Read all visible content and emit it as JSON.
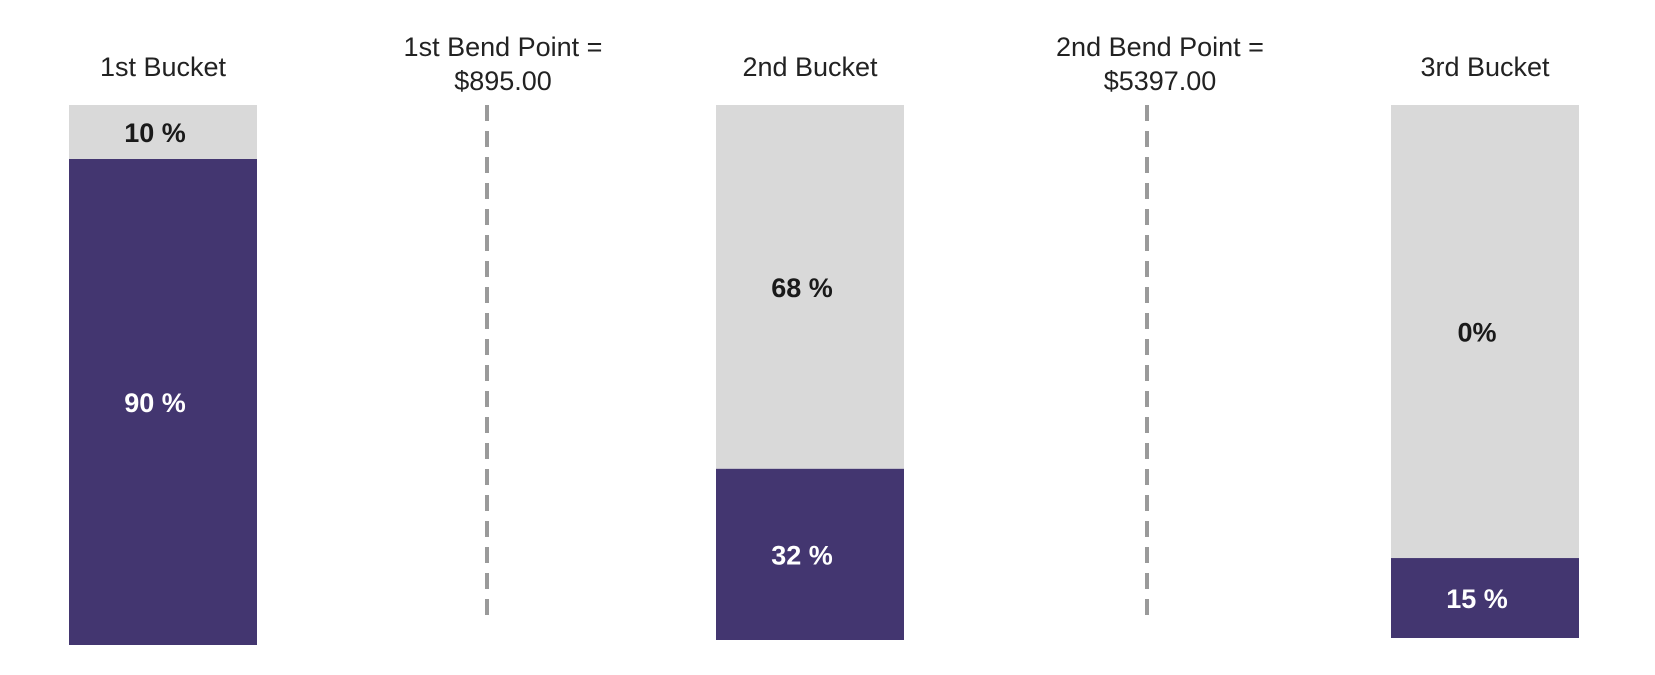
{
  "chart_data": {
    "type": "bar",
    "categories": [
      "1st Bucket",
      "2nd Bucket",
      "3rd Bucket"
    ],
    "series": [
      {
        "values": [
          90,
          32,
          15
        ]
      },
      {
        "values": [
          10,
          68,
          0
        ]
      }
    ],
    "value_labels": [
      {
        "bottom": "90 %",
        "top": "10 %"
      },
      {
        "bottom": "32 %",
        "top": "68 %"
      },
      {
        "bottom": "15 %",
        "top": "0%"
      }
    ],
    "bend_points": [
      {
        "line1": "1st Bend Point =",
        "line2": "$895.00"
      },
      {
        "line1": "2nd Bend Point =",
        "line2": "$5397.00"
      }
    ],
    "colors": {
      "primary": "#433670",
      "secondary": "#d9d9d9",
      "label_on_primary": "#ffffff",
      "label_on_secondary": "#1a1a1a",
      "divider": "#9a9a9a"
    }
  }
}
